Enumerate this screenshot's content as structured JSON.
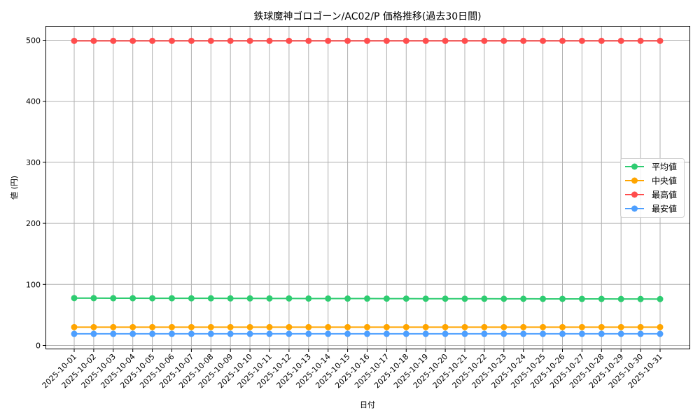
{
  "chart_data": {
    "type": "line",
    "title": "鉄球魔神ゴロゴーン/AC02/P 価格推移(過去30日間)",
    "xlabel": "日付",
    "ylabel": "値 (円)",
    "ylim": [
      -5,
      522
    ],
    "yticks": [
      0,
      100,
      200,
      300,
      400,
      500
    ],
    "grid": true,
    "legend_position": "center right",
    "x": [
      "2025-10-01",
      "2025-10-02",
      "2025-10-03",
      "2025-10-04",
      "2025-10-05",
      "2025-10-06",
      "2025-10-07",
      "2025-10-08",
      "2025-10-09",
      "2025-10-10",
      "2025-10-11",
      "2025-10-12",
      "2025-10-13",
      "2025-10-14",
      "2025-10-15",
      "2025-10-16",
      "2025-10-17",
      "2025-10-18",
      "2025-10-19",
      "2025-10-20",
      "2025-10-21",
      "2025-10-22",
      "2025-10-23",
      "2025-10-24",
      "2025-10-25",
      "2025-10-26",
      "2025-10-27",
      "2025-10-28",
      "2025-10-29",
      "2025-10-30",
      "2025-10-31"
    ],
    "series": [
      {
        "name": "平均値",
        "color": "#2ecc71",
        "values": [
          77.6,
          77.5,
          77.4,
          77.4,
          77.3,
          77.3,
          77.2,
          77.2,
          77.1,
          77.1,
          77.0,
          77.0,
          76.9,
          76.9,
          76.8,
          76.8,
          76.7,
          76.7,
          76.6,
          76.6,
          76.5,
          76.5,
          76.4,
          76.4,
          76.3,
          76.3,
          76.2,
          76.2,
          76.1,
          76.1,
          76.0
        ]
      },
      {
        "name": "中央値",
        "color": "#ffa500",
        "values": [
          30,
          30,
          30,
          30,
          30,
          30,
          30,
          30,
          30,
          30,
          30,
          30,
          30,
          30,
          30,
          30,
          30,
          30,
          30,
          30,
          30,
          30,
          30,
          30,
          30,
          30,
          30,
          30,
          30,
          30,
          30
        ]
      },
      {
        "name": "最高値",
        "color": "#ff4d4d",
        "values": [
          499,
          499,
          499,
          499,
          499,
          499,
          499,
          499,
          499,
          499,
          499,
          499,
          499,
          499,
          499,
          499,
          499,
          499,
          499,
          499,
          499,
          499,
          499,
          499,
          499,
          499,
          499,
          499,
          499,
          499,
          499
        ]
      },
      {
        "name": "最安値",
        "color": "#4d9fff",
        "values": [
          19,
          19,
          19,
          19,
          19,
          19,
          19,
          19,
          19,
          19,
          19,
          19,
          19,
          19,
          19,
          19,
          19,
          19,
          19,
          19,
          19,
          19,
          19,
          19,
          19,
          19,
          19,
          19,
          19,
          19,
          19
        ]
      }
    ]
  }
}
